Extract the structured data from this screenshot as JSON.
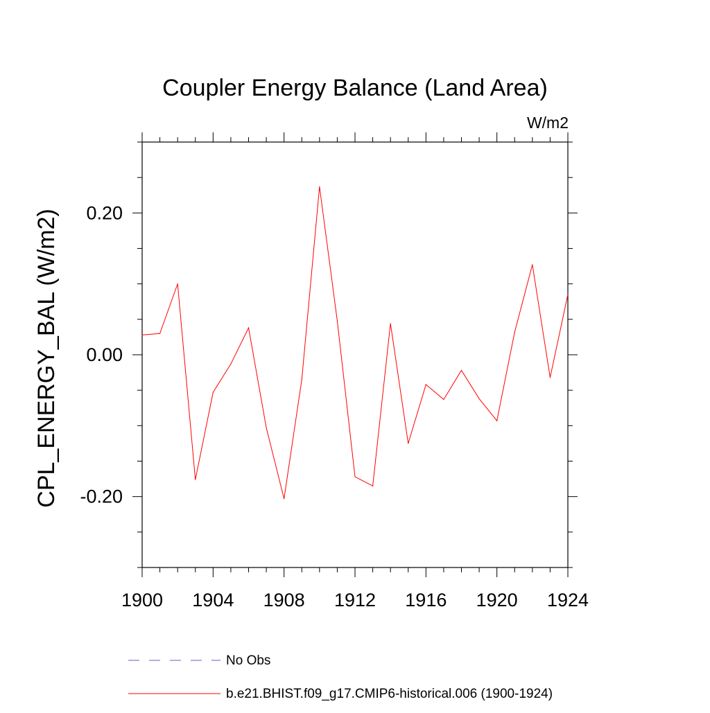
{
  "chart_data": {
    "type": "line",
    "title": "Coupler Energy Balance (Land Area)",
    "units": "W/m2",
    "ylabel": "CPL_ENERGY_BAL  (W/m2)",
    "xlabel": "",
    "xlim": [
      1900,
      1924
    ],
    "ylim": [
      -0.3,
      0.3
    ],
    "x_ticks": [
      1900,
      1904,
      1908,
      1912,
      1916,
      1920,
      1924
    ],
    "x_tick_labels": [
      "1900",
      "1904",
      "1908",
      "1912",
      "1916",
      "1920",
      "1924"
    ],
    "x_minor_ticks": [
      1901,
      1902,
      1903,
      1905,
      1906,
      1907,
      1909,
      1910,
      1911,
      1913,
      1914,
      1915,
      1917,
      1918,
      1919,
      1921,
      1922,
      1923
    ],
    "y_ticks": [
      -0.2,
      0.0,
      0.2
    ],
    "y_tick_labels": [
      "-0.20",
      "0.00",
      "0.20"
    ],
    "y_minor_ticks": [
      -0.3,
      -0.25,
      -0.15,
      -0.1,
      -0.05,
      0.05,
      0.1,
      0.15,
      0.25,
      0.3
    ],
    "grid": false,
    "legend_position": "bottom",
    "colors": {
      "model": "#ff0000",
      "obs": "#6a5acd"
    },
    "series": [
      {
        "name": "b.e21.BHIST.f09_g17.CMIP6-historical.006 (1900-1924)",
        "x": [
          1900,
          1901,
          1902,
          1903,
          1904,
          1905,
          1906,
          1907,
          1908,
          1909,
          1910,
          1911,
          1912,
          1913,
          1914,
          1915,
          1916,
          1917,
          1918,
          1919,
          1920,
          1921,
          1922,
          1923,
          1924
        ],
        "y": [
          0.028,
          0.03,
          0.1,
          -0.176,
          -0.053,
          -0.013,
          0.038,
          -0.103,
          -0.203,
          -0.035,
          0.237,
          0.048,
          -0.172,
          -0.185,
          0.044,
          -0.125,
          -0.042,
          -0.063,
          -0.022,
          -0.062,
          -0.093,
          0.032,
          0.127,
          -0.032,
          0.085
        ]
      }
    ],
    "legend": [
      {
        "label": "No Obs",
        "style": "dashed",
        "color": "#6a5acd"
      },
      {
        "label": "b.e21.BHIST.f09_g17.CMIP6-historical.006 (1900-1924)",
        "style": "solid",
        "color": "#ff0000"
      }
    ]
  }
}
